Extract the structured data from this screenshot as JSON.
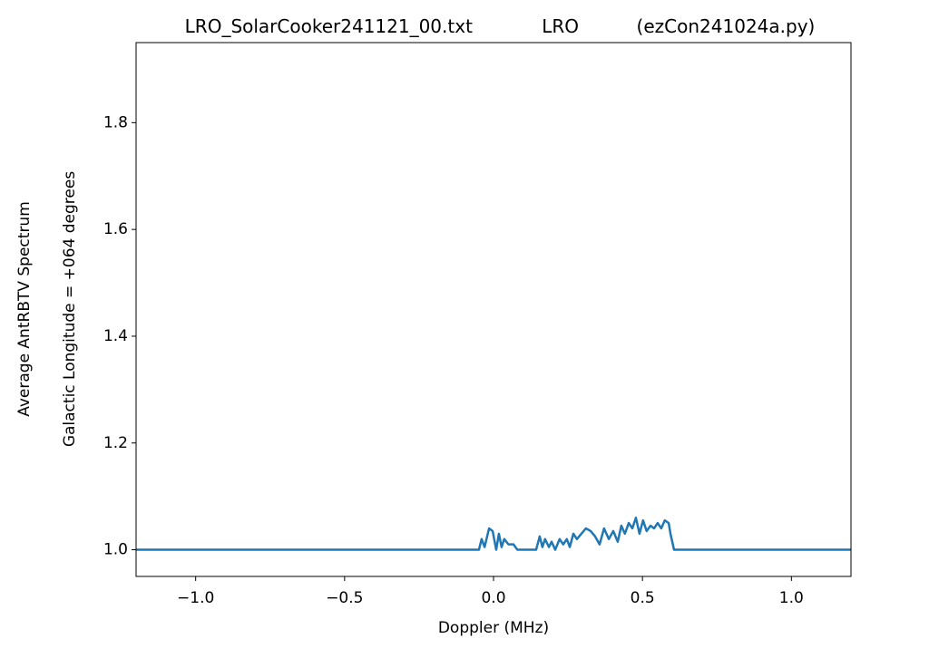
{
  "chart_data": {
    "type": "line",
    "title": "LRO_SolarCooker241121_00.txt            LRO          (ezCon241024a.py)",
    "xlabel": "Doppler (MHz)",
    "ylabel": [
      "Average AntRBTV Spectrum",
      "Galactic Longitude = +064 degrees"
    ],
    "x": [
      -1.2,
      -0.049,
      -0.04,
      -0.03,
      -0.015,
      -0.003,
      0.009,
      0.018,
      0.027,
      0.036,
      0.05,
      0.067,
      0.08,
      0.143,
      0.155,
      0.164,
      0.173,
      0.186,
      0.195,
      0.207,
      0.222,
      0.234,
      0.246,
      0.256,
      0.268,
      0.28,
      0.295,
      0.31,
      0.326,
      0.341,
      0.356,
      0.371,
      0.387,
      0.402,
      0.417,
      0.429,
      0.441,
      0.454,
      0.466,
      0.478,
      0.49,
      0.502,
      0.514,
      0.527,
      0.539,
      0.551,
      0.563,
      0.575,
      0.588,
      0.594,
      0.606,
      1.2
    ],
    "series": [
      {
        "color": "#1f77b4",
        "values": [
          1.0,
          1.0,
          1.02,
          1.005,
          1.04,
          1.035,
          1.0,
          1.03,
          1.005,
          1.02,
          1.01,
          1.01,
          1.0,
          1.0,
          1.025,
          1.005,
          1.02,
          1.005,
          1.015,
          1.0,
          1.02,
          1.01,
          1.02,
          1.005,
          1.03,
          1.02,
          1.03,
          1.04,
          1.035,
          1.025,
          1.01,
          1.04,
          1.02,
          1.035,
          1.015,
          1.045,
          1.03,
          1.05,
          1.04,
          1.06,
          1.03,
          1.055,
          1.035,
          1.045,
          1.04,
          1.05,
          1.04,
          1.055,
          1.05,
          1.03,
          1.0,
          1.0
        ]
      }
    ],
    "xlim": [
      -1.2,
      1.2
    ],
    "xticks": [
      {
        "value": -1.0,
        "label": "−1.0"
      },
      {
        "value": -0.5,
        "label": "−0.5"
      },
      {
        "value": 0.0,
        "label": "0.0"
      },
      {
        "value": 0.5,
        "label": "0.5"
      },
      {
        "value": 1.0,
        "label": "1.0"
      }
    ],
    "ylim": [
      0.95,
      1.95
    ],
    "yticks": [
      {
        "value": 1.0,
        "label": "1.0"
      },
      1.2,
      1.4,
      1.6,
      1.8
    ],
    "grid": false
  }
}
